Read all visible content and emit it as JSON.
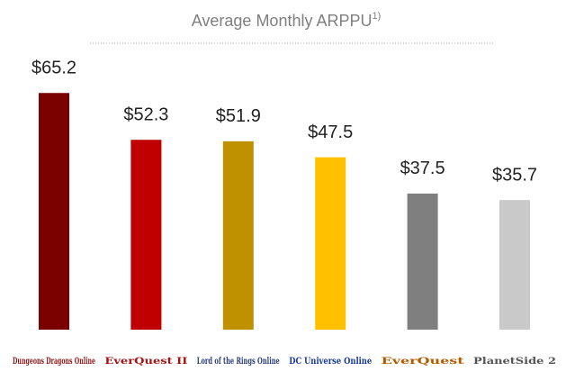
{
  "chart_data": {
    "type": "bar",
    "title": "Average Monthly ARPPU",
    "title_note": "1)",
    "categories": [
      "Dungeons Dragons Online",
      "EverQuest II",
      "Lord of the Rings Online",
      "DC Universe Online",
      "EverQuest",
      "PlanetSide 2"
    ],
    "values": [
      65.2,
      52.3,
      51.9,
      47.5,
      37.5,
      35.7
    ],
    "value_labels": [
      "$65.2",
      "$52.3",
      "$51.9",
      "$47.5",
      "$37.5",
      "$35.7"
    ],
    "colors": [
      "#7b0000",
      "#c00000",
      "#bf9000",
      "#ffc000",
      "#7f7f7f",
      "#c9c9c9"
    ]
  }
}
